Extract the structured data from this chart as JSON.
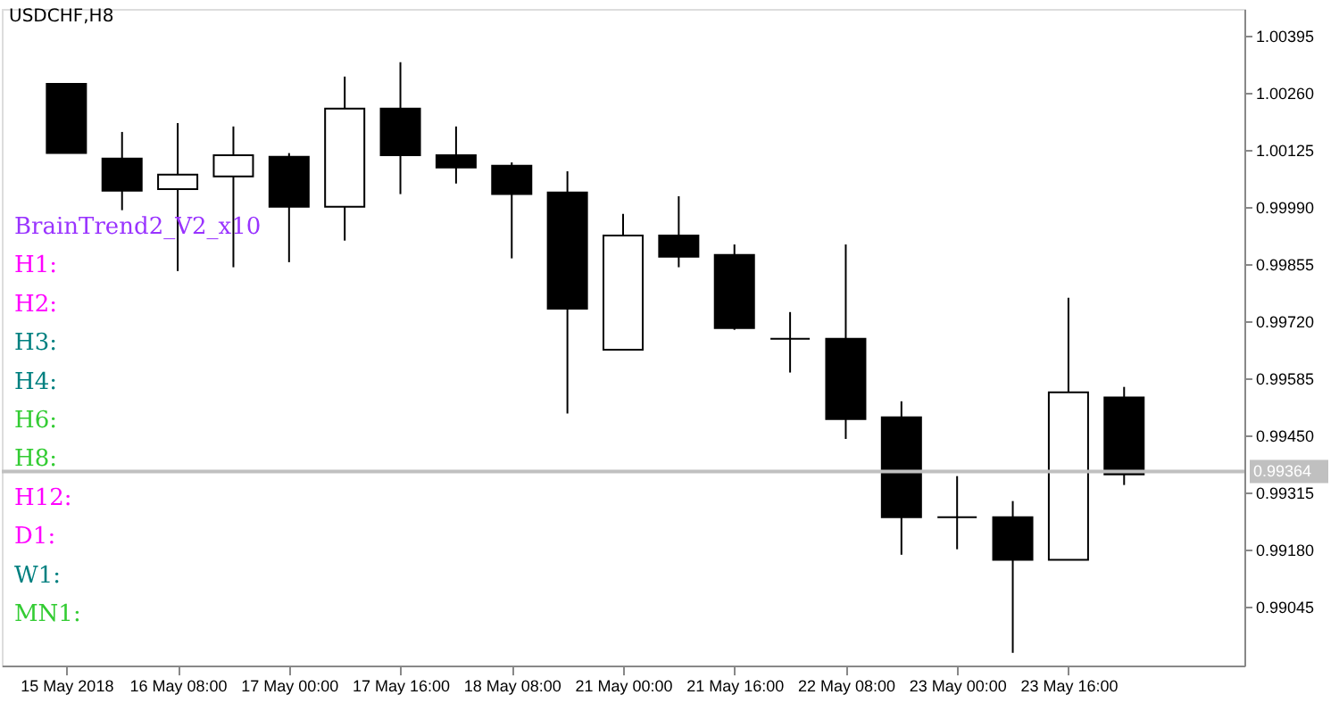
{
  "chart_data": {
    "type": "candlestick",
    "title": "USDCHF,H8",
    "categories": [
      "15 May 2018",
      null,
      "16 May 08:00",
      null,
      "17 May 00:00",
      null,
      "17 May 16:00",
      null,
      "18 May 08:00",
      null,
      "21 May 00:00",
      null,
      "21 May 16:00",
      null,
      "22 May 08:00",
      null,
      "23 May 00:00",
      null,
      "23 May 16:00",
      null
    ],
    "ohlc": [
      [
        1.00281,
        1.00281,
        1.00117,
        1.00117
      ],
      [
        1.00104,
        1.00167,
        0.99982,
        1.00028
      ],
      [
        1.00032,
        1.00188,
        0.99838,
        1.00066
      ],
      [
        1.00062,
        1.0018,
        0.99847,
        1.00112
      ],
      [
        1.00108,
        1.00117,
        0.99859,
        0.9999
      ],
      [
        0.9999,
        1.00298,
        0.9991,
        1.00222
      ],
      [
        1.00222,
        1.00332,
        1.0002,
        1.00112
      ],
      [
        1.00112,
        1.0018,
        1.00045,
        1.00083
      ],
      [
        1.00087,
        1.00095,
        0.99868,
        1.0002
      ],
      [
        1.00024,
        1.00074,
        0.99501,
        0.99749
      ],
      [
        0.99652,
        0.99973,
        0.99652,
        0.99922
      ],
      [
        0.99922,
        1.00015,
        0.99847,
        0.99872
      ],
      [
        0.99876,
        0.99901,
        0.99699,
        0.99703
      ],
      [
        0.99678,
        0.99741,
        0.99598,
        0.99678
      ],
      [
        0.99678,
        0.99901,
        0.99441,
        0.99488
      ],
      [
        0.99492,
        0.9953,
        0.99167,
        0.99256
      ],
      [
        0.99256,
        0.99353,
        0.9918,
        0.99256
      ],
      [
        0.99256,
        0.99294,
        0.98935,
        0.99155
      ],
      [
        0.99155,
        0.99775,
        0.99155,
        0.99551
      ],
      [
        0.99539,
        0.99564,
        0.99332,
        0.99357
      ]
    ],
    "ylim": [
      0.98905,
      1.00458
    ],
    "yticks": [
      0.99045,
      {
        "value": 0.9918,
        "label": "0.99180"
      },
      0.99315,
      {
        "value": 0.9945,
        "label": "0.99450"
      },
      0.99585,
      {
        "value": 0.9972,
        "label": "0.99720"
      },
      0.99855,
      {
        "value": 0.9999,
        "label": "0.99990"
      },
      1.00125,
      {
        "value": 1.0026,
        "label": "1.00260"
      },
      1.00395
    ],
    "ref_lines": [
      {
        "axis": "y",
        "value": 0.99364,
        "label": "0.99364",
        "color": "#c0c0c0"
      }
    ],
    "annotations": [
      "BrainTrend2_V2_x10",
      "H1:",
      "H2:",
      "H3:",
      "H4:",
      "H6:",
      "H8:",
      "H12:",
      "D1:",
      "W1:",
      "MN1:"
    ],
    "grid": false
  }
}
